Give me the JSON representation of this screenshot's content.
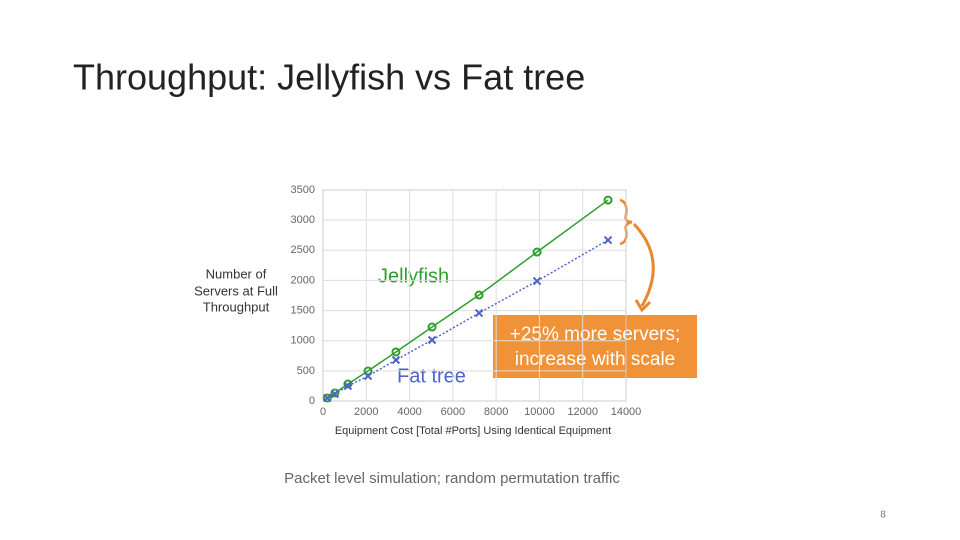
{
  "slide": {
    "title": "Throughput: Jellyfish vs Fat tree",
    "caption": "Packet level simulation; random permutation traffic",
    "page_number": "8"
  },
  "chart_data": {
    "type": "line",
    "ylabel": [
      "Number of",
      "Servers at Full",
      "Throughput"
    ],
    "xlabel": "Equipment Cost [Total #Ports] Using Identical Equipment",
    "annotation": [
      "+25% more servers;",
      "increase with scale"
    ],
    "x": [
      200,
      550,
      1150,
      2080,
      3370,
      5040,
      7210,
      9890,
      13170
    ],
    "series": [
      {
        "name": "Jellyfish",
        "color": "#2e9e2e",
        "marker": "o",
        "linestyle": "solid",
        "values": [
          50,
          133,
          282,
          498,
          813,
          1227,
          1758,
          2471,
          3333
        ]
      },
      {
        "name": "Fat tree",
        "color": "#4f63c9",
        "marker": "x",
        "linestyle": "dotted",
        "values": [
          50,
          116,
          249,
          415,
          680,
          1012,
          1459,
          1990,
          2670
        ]
      }
    ],
    "xlim": [
      0,
      14000
    ],
    "xticks": [
      0,
      2000,
      4000,
      6000,
      8000,
      10000,
      12000,
      14000
    ],
    "ylim": [
      0,
      3500
    ],
    "yticks": [
      0,
      500,
      1000,
      1500,
      2000,
      2500,
      3000,
      3500
    ],
    "grid": true
  }
}
